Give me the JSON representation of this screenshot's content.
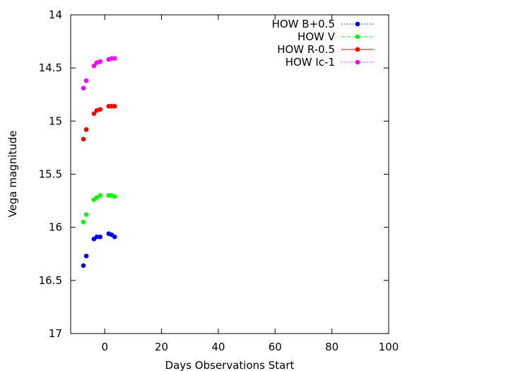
{
  "chart_data": {
    "type": "scatter",
    "title": "",
    "xlabel": "Days Observations Start",
    "ylabel": "Vega magnitude",
    "xlim": [
      -12,
      100
    ],
    "ylim": [
      17,
      14
    ],
    "y_inverted": true,
    "xticks": [
      0,
      20,
      40,
      60,
      80,
      100
    ],
    "yticks": [
      14,
      14.5,
      15,
      15.5,
      16,
      16.5,
      17
    ],
    "grid": false,
    "legend_position": "top-right",
    "series": [
      {
        "name": "HOW B+0.5",
        "color": "#0000ff",
        "legend_line": "dotted",
        "x": [
          -7.5,
          -6.5,
          -3.8,
          -2.8,
          -1.6,
          1.4,
          2.4,
          3.5
        ],
        "y": [
          16.36,
          16.27,
          16.11,
          16.09,
          16.09,
          16.06,
          16.07,
          16.09
        ]
      },
      {
        "name": "HOW V",
        "color": "#00ff00",
        "legend_line": "dashed",
        "x": [
          -7.5,
          -6.5,
          -3.8,
          -2.8,
          -1.6,
          1.4,
          2.4,
          3.5
        ],
        "y": [
          15.95,
          15.88,
          15.74,
          15.72,
          15.7,
          15.7,
          15.7,
          15.71
        ]
      },
      {
        "name": "HOW R-0.5",
        "color": "#ff0000",
        "legend_line": "solid",
        "x": [
          -7.5,
          -6.5,
          -3.8,
          -2.8,
          -1.6,
          1.4,
          2.4,
          3.5
        ],
        "y": [
          15.17,
          15.08,
          14.93,
          14.9,
          14.89,
          14.86,
          14.86,
          14.86
        ]
      },
      {
        "name": "HOW Ic-1",
        "color": "#ff00ff",
        "legend_line": "dotted",
        "x": [
          -7.5,
          -6.5,
          -3.8,
          -2.8,
          -1.6,
          1.4,
          2.4,
          3.5
        ],
        "y": [
          14.69,
          14.62,
          14.48,
          14.45,
          14.44,
          14.42,
          14.41,
          14.41
        ]
      }
    ]
  }
}
